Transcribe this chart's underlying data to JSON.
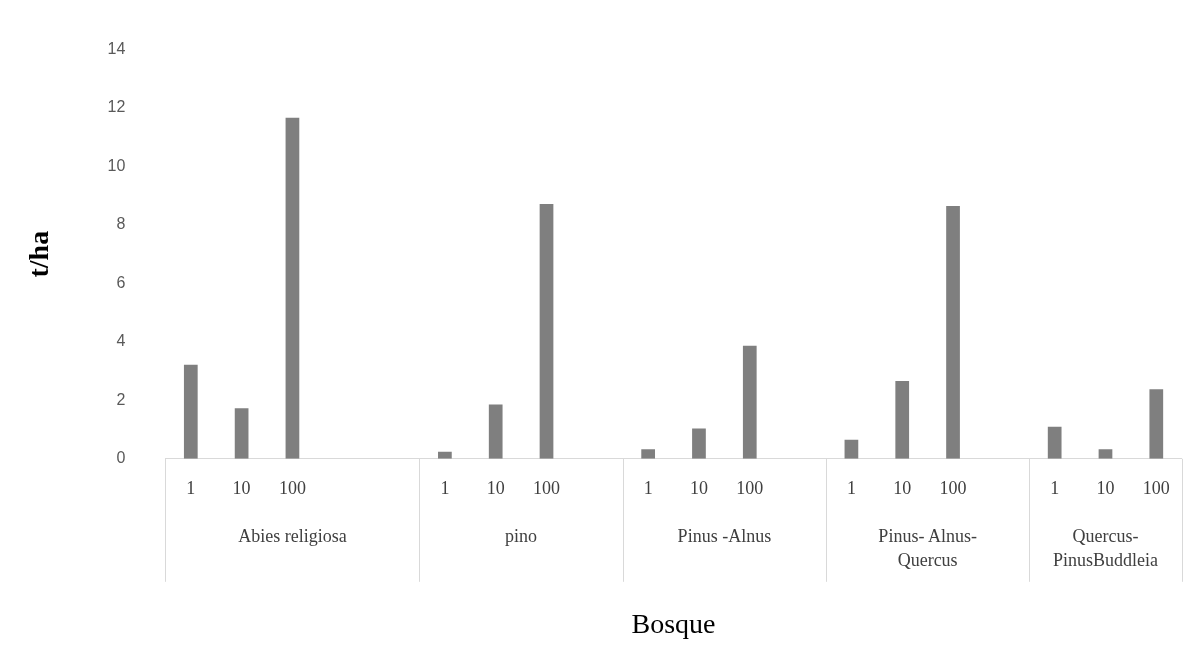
{
  "chart_data": {
    "type": "bar",
    "xlabel": "Bosque",
    "ylabel": "t/ha",
    "categories": [
      "1",
      "10",
      "100",
      null,
      null,
      "1",
      "10",
      "100",
      null,
      "1",
      "10",
      "100",
      null,
      "1",
      "10",
      "100",
      null,
      "1",
      "10",
      "100"
    ],
    "values": [
      3.22,
      1.73,
      11.67,
      null,
      null,
      0.24,
      1.86,
      8.72,
      null,
      0.33,
      1.04,
      3.87,
      null,
      0.65,
      2.66,
      8.65,
      null,
      1.1,
      0.33,
      2.38
    ],
    "color": "#7f7f7f",
    "ylim": [
      0,
      14
    ],
    "yticks": [
      0,
      2,
      4,
      6,
      8,
      10,
      12,
      14
    ],
    "grid": false,
    "annotations": [
      "Abies religiosa",
      "pino",
      "Pinus -Alnus",
      "Pinus- Alnus-Quercus",
      "Quercus-PinusBuddleia"
    ]
  }
}
